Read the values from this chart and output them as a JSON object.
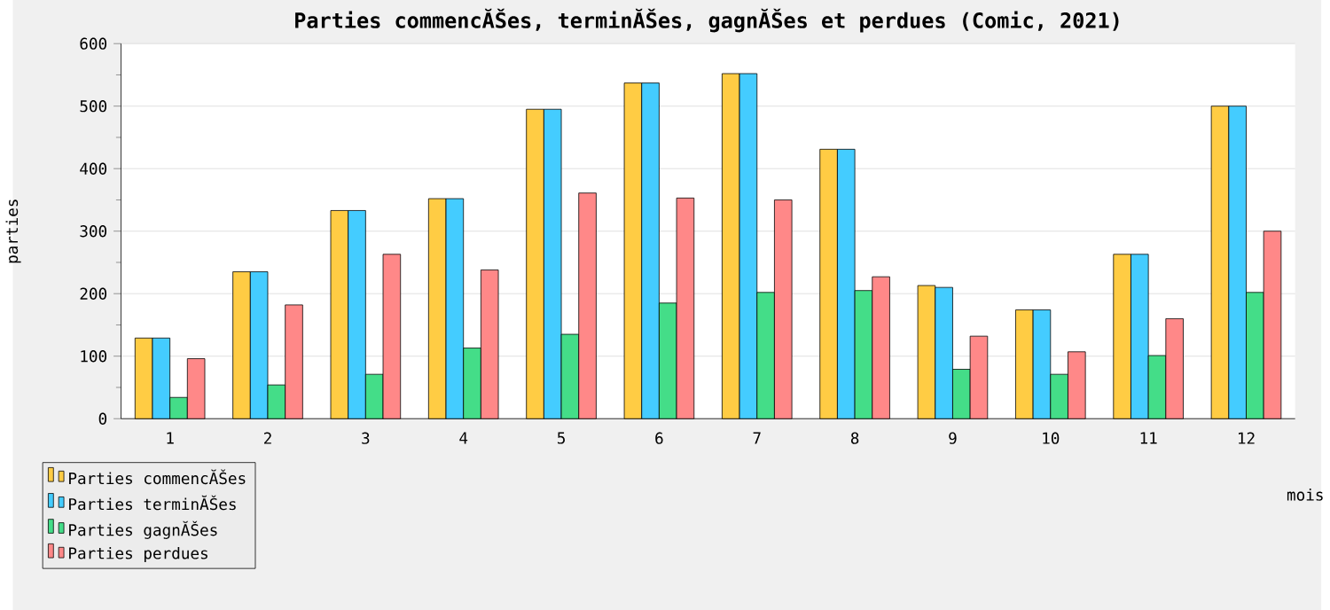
{
  "chart_data": {
    "type": "bar",
    "title": "Parties commencĂŠes, terminĂŠes, gagnĂŠes et perdues (Comic, 2021)",
    "xlabel": "mois",
    "ylabel": "parties",
    "categories": [
      "1",
      "2",
      "3",
      "4",
      "5",
      "6",
      "7",
      "8",
      "9",
      "10",
      "11",
      "12"
    ],
    "series": [
      {
        "name": "Parties commencĂŠes",
        "color": "#ffcc44",
        "values": [
          129,
          235,
          333,
          352,
          495,
          537,
          552,
          431,
          213,
          174,
          263,
          500
        ]
      },
      {
        "name": "Parties terminĂŠes",
        "color": "#44ccff",
        "values": [
          129,
          235,
          333,
          352,
          495,
          537,
          552,
          431,
          210,
          174,
          263,
          500
        ]
      },
      {
        "name": "Parties gagnĂŠes",
        "color": "#44dd88",
        "values": [
          34,
          54,
          71,
          113,
          135,
          185,
          202,
          205,
          79,
          71,
          101,
          202
        ]
      },
      {
        "name": "Parties perdues",
        "color": "#ff8888",
        "values": [
          96,
          182,
          263,
          238,
          361,
          353,
          350,
          227,
          132,
          107,
          160,
          300
        ]
      }
    ],
    "ylim": [
      0,
      600
    ],
    "yticks": [
      0,
      100,
      200,
      300,
      400,
      500,
      600
    ],
    "grid": "y",
    "legend": "bottom left"
  }
}
